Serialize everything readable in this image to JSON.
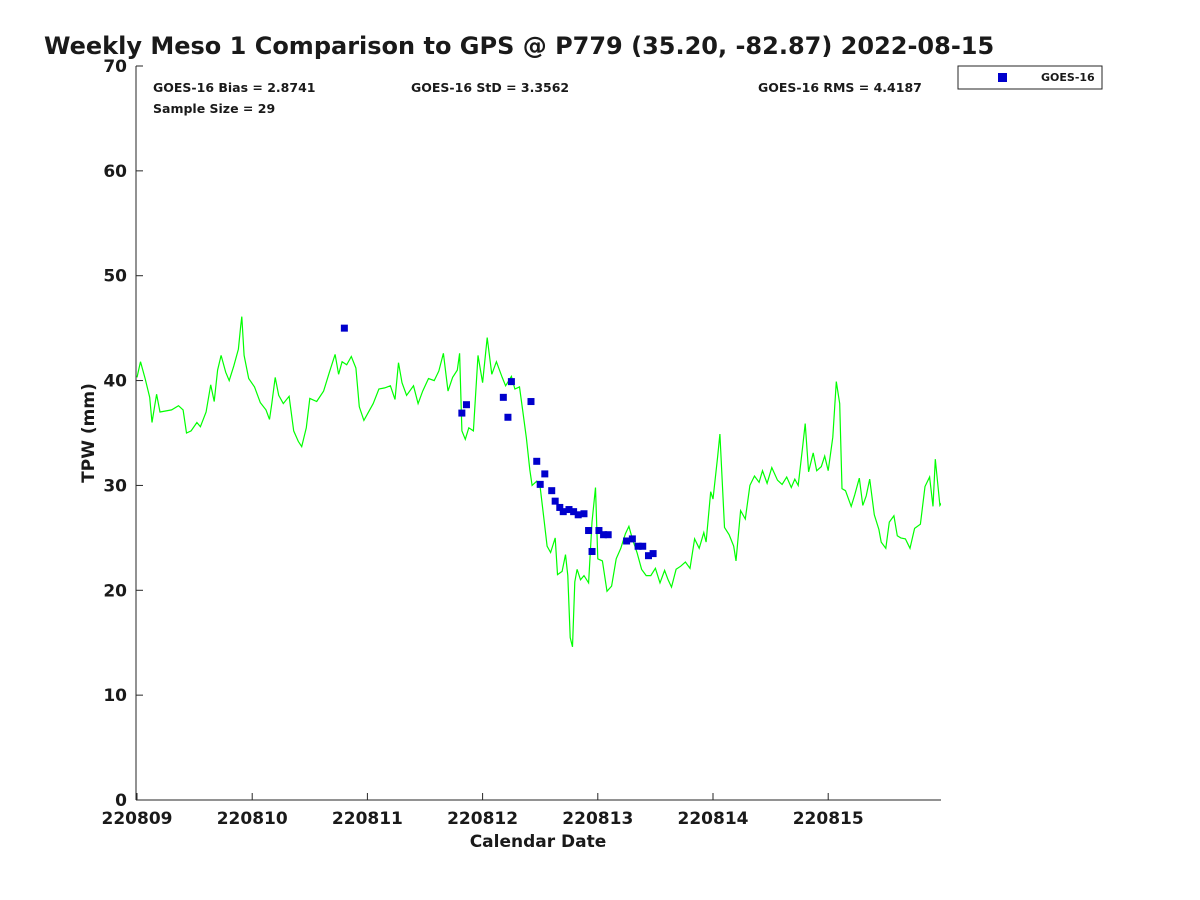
{
  "chart_data": {
    "type": "scatter",
    "title": "Weekly Meso 1 Comparison to GPS @ P779 (35.20, -82.87) 2022-08-15",
    "xlabel": "Calendar Date",
    "ylabel": "TPW (mm)",
    "xlim_days": [
      0,
      6.97
    ],
    "ylim": [
      0,
      70
    ],
    "y_ticks": [
      0,
      10,
      20,
      30,
      40,
      50,
      60,
      70
    ],
    "x_ticks": [
      {
        "day": 0,
        "label": "220809"
      },
      {
        "day": 1,
        "label": "220810"
      },
      {
        "day": 2,
        "label": "220811"
      },
      {
        "day": 3,
        "label": "220812"
      },
      {
        "day": 4,
        "label": "220813"
      },
      {
        "day": 5,
        "label": "220814"
      },
      {
        "day": 6,
        "label": "220815"
      }
    ],
    "stats": {
      "bias": "GOES-16 Bias = 2.8741",
      "std": "GOES-16 StD = 3.3562",
      "rms": "GOES-16 RMS = 4.4187",
      "sample": "Sample Size = 29"
    },
    "legend": {
      "label": "GOES-16",
      "position": "outside-top-right"
    },
    "colors": {
      "goes": "#0000cc",
      "gps": "#00ff00"
    },
    "series": [
      {
        "name": "GOES-16",
        "marker": "square",
        "points": [
          [
            1.8,
            45.0
          ],
          [
            2.82,
            36.9
          ],
          [
            2.86,
            37.7
          ],
          [
            3.18,
            38.4
          ],
          [
            3.22,
            36.5
          ],
          [
            3.25,
            39.9
          ],
          [
            3.42,
            38.0
          ],
          [
            3.47,
            32.3
          ],
          [
            3.5,
            30.1
          ],
          [
            3.54,
            31.1
          ],
          [
            3.6,
            29.5
          ],
          [
            3.63,
            28.5
          ],
          [
            3.67,
            27.9
          ],
          [
            3.7,
            27.5
          ],
          [
            3.75,
            27.7
          ],
          [
            3.79,
            27.5
          ],
          [
            3.83,
            27.2
          ],
          [
            3.88,
            27.3
          ],
          [
            3.92,
            25.7
          ],
          [
            3.95,
            23.7
          ],
          [
            4.01,
            25.7
          ],
          [
            4.05,
            25.3
          ],
          [
            4.09,
            25.3
          ],
          [
            4.25,
            24.7
          ],
          [
            4.3,
            24.9
          ],
          [
            4.35,
            24.2
          ],
          [
            4.39,
            24.2
          ],
          [
            4.44,
            23.3
          ],
          [
            4.48,
            23.5
          ]
        ]
      },
      {
        "marker": "line",
        "points": [
          [
            0.0,
            40.3
          ],
          [
            0.03,
            41.8
          ],
          [
            0.07,
            40.2
          ],
          [
            0.11,
            38.4
          ],
          [
            0.13,
            36.0
          ],
          [
            0.17,
            38.7
          ],
          [
            0.2,
            37.0
          ],
          [
            0.3,
            37.2
          ],
          [
            0.36,
            37.6
          ],
          [
            0.4,
            37.2
          ],
          [
            0.43,
            35.0
          ],
          [
            0.47,
            35.2
          ],
          [
            0.52,
            36.0
          ],
          [
            0.55,
            35.6
          ],
          [
            0.6,
            37.0
          ],
          [
            0.64,
            39.6
          ],
          [
            0.67,
            38.0
          ],
          [
            0.7,
            41.0
          ],
          [
            0.73,
            42.4
          ],
          [
            0.77,
            40.8
          ],
          [
            0.8,
            40.0
          ],
          [
            0.84,
            41.4
          ],
          [
            0.88,
            43.0
          ],
          [
            0.9,
            45.2
          ],
          [
            0.91,
            46.1
          ],
          [
            0.93,
            42.4
          ],
          [
            0.97,
            40.2
          ],
          [
            1.02,
            39.4
          ],
          [
            1.07,
            37.9
          ],
          [
            1.12,
            37.2
          ],
          [
            1.15,
            36.3
          ],
          [
            1.17,
            37.8
          ],
          [
            1.2,
            40.3
          ],
          [
            1.23,
            38.6
          ],
          [
            1.27,
            37.8
          ],
          [
            1.32,
            38.5
          ],
          [
            1.36,
            35.2
          ],
          [
            1.4,
            34.2
          ],
          [
            1.43,
            33.7
          ],
          [
            1.47,
            35.5
          ],
          [
            1.5,
            38.3
          ],
          [
            1.56,
            38.0
          ],
          [
            1.62,
            39.0
          ],
          [
            1.67,
            40.8
          ],
          [
            1.72,
            42.5
          ],
          [
            1.75,
            40.6
          ],
          [
            1.78,
            41.8
          ],
          [
            1.82,
            41.5
          ],
          [
            1.86,
            42.3
          ],
          [
            1.9,
            41.2
          ],
          [
            1.93,
            37.5
          ],
          [
            1.97,
            36.2
          ],
          [
            2.0,
            36.8
          ],
          [
            2.05,
            37.8
          ],
          [
            2.1,
            39.2
          ],
          [
            2.15,
            39.3
          ],
          [
            2.2,
            39.5
          ],
          [
            2.24,
            38.2
          ],
          [
            2.27,
            41.7
          ],
          [
            2.3,
            39.8
          ],
          [
            2.34,
            38.6
          ],
          [
            2.4,
            39.5
          ],
          [
            2.44,
            37.8
          ],
          [
            2.48,
            39.0
          ],
          [
            2.53,
            40.2
          ],
          [
            2.58,
            40.0
          ],
          [
            2.62,
            40.9
          ],
          [
            2.66,
            42.6
          ],
          [
            2.7,
            39.0
          ],
          [
            2.74,
            40.3
          ],
          [
            2.78,
            41.0
          ],
          [
            2.8,
            42.6
          ],
          [
            2.82,
            35.2
          ],
          [
            2.85,
            34.4
          ],
          [
            2.88,
            35.5
          ],
          [
            2.92,
            35.2
          ],
          [
            2.96,
            42.4
          ],
          [
            3.0,
            39.8
          ],
          [
            3.04,
            44.1
          ],
          [
            3.08,
            40.6
          ],
          [
            3.12,
            41.8
          ],
          [
            3.17,
            40.3
          ],
          [
            3.2,
            39.5
          ],
          [
            3.25,
            40.4
          ],
          [
            3.28,
            39.2
          ],
          [
            3.32,
            39.4
          ],
          [
            3.35,
            37.0
          ],
          [
            3.38,
            34.5
          ],
          [
            3.41,
            31.5
          ],
          [
            3.43,
            30.0
          ],
          [
            3.47,
            30.4
          ],
          [
            3.5,
            29.8
          ],
          [
            3.53,
            27.0
          ],
          [
            3.56,
            24.2
          ],
          [
            3.59,
            23.6
          ],
          [
            3.63,
            25.0
          ],
          [
            3.65,
            21.5
          ],
          [
            3.69,
            21.8
          ],
          [
            3.72,
            23.4
          ],
          [
            3.74,
            21.4
          ],
          [
            3.76,
            15.5
          ],
          [
            3.78,
            14.6
          ],
          [
            3.8,
            20.8
          ],
          [
            3.82,
            22.0
          ],
          [
            3.85,
            21.0
          ],
          [
            3.88,
            21.4
          ],
          [
            3.92,
            20.7
          ],
          [
            3.95,
            26.5
          ],
          [
            3.98,
            29.8
          ],
          [
            4.0,
            23.0
          ],
          [
            4.04,
            22.8
          ],
          [
            4.08,
            19.9
          ],
          [
            4.12,
            20.4
          ],
          [
            4.16,
            23.0
          ],
          [
            4.2,
            24.0
          ],
          [
            4.24,
            25.4
          ],
          [
            4.27,
            26.1
          ],
          [
            4.3,
            24.9
          ],
          [
            4.34,
            23.6
          ],
          [
            4.38,
            22.0
          ],
          [
            4.42,
            21.4
          ],
          [
            4.46,
            21.4
          ],
          [
            4.5,
            22.1
          ],
          [
            4.54,
            20.7
          ],
          [
            4.58,
            21.9
          ],
          [
            4.61,
            21.0
          ],
          [
            4.64,
            20.3
          ],
          [
            4.68,
            22.0
          ],
          [
            4.72,
            22.3
          ],
          [
            4.76,
            22.7
          ],
          [
            4.8,
            22.1
          ],
          [
            4.84,
            24.9
          ],
          [
            4.88,
            24.0
          ],
          [
            4.92,
            25.5
          ],
          [
            4.94,
            24.6
          ],
          [
            4.98,
            29.4
          ],
          [
            5.0,
            28.7
          ],
          [
            5.04,
            32.7
          ],
          [
            5.06,
            34.9
          ],
          [
            5.1,
            26.0
          ],
          [
            5.14,
            25.3
          ],
          [
            5.18,
            24.2
          ],
          [
            5.2,
            22.8
          ],
          [
            5.24,
            27.6
          ],
          [
            5.28,
            26.8
          ],
          [
            5.32,
            30.0
          ],
          [
            5.36,
            30.9
          ],
          [
            5.4,
            30.3
          ],
          [
            5.43,
            31.4
          ],
          [
            5.47,
            30.2
          ],
          [
            5.51,
            31.7
          ],
          [
            5.56,
            30.5
          ],
          [
            5.6,
            30.1
          ],
          [
            5.64,
            30.8
          ],
          [
            5.68,
            29.8
          ],
          [
            5.71,
            30.6
          ],
          [
            5.74,
            30.0
          ],
          [
            5.78,
            33.9
          ],
          [
            5.8,
            35.9
          ],
          [
            5.83,
            31.3
          ],
          [
            5.87,
            33.1
          ],
          [
            5.9,
            31.4
          ],
          [
            5.94,
            31.8
          ],
          [
            5.97,
            32.8
          ],
          [
            6.0,
            31.4
          ],
          [
            6.04,
            34.6
          ],
          [
            6.07,
            39.9
          ],
          [
            6.1,
            37.8
          ],
          [
            6.12,
            29.7
          ],
          [
            6.15,
            29.5
          ],
          [
            6.2,
            28.0
          ],
          [
            6.23,
            29.1
          ],
          [
            6.27,
            30.7
          ],
          [
            6.3,
            28.1
          ],
          [
            6.33,
            29.0
          ],
          [
            6.36,
            30.6
          ],
          [
            6.4,
            27.2
          ],
          [
            6.44,
            25.8
          ],
          [
            6.46,
            24.6
          ],
          [
            6.5,
            24.0
          ],
          [
            6.53,
            26.5
          ],
          [
            6.57,
            27.1
          ],
          [
            6.6,
            25.2
          ],
          [
            6.63,
            25.0
          ],
          [
            6.67,
            24.9
          ],
          [
            6.71,
            24.0
          ],
          [
            6.75,
            25.9
          ],
          [
            6.8,
            26.3
          ],
          [
            6.84,
            29.9
          ],
          [
            6.88,
            30.8
          ],
          [
            6.91,
            28.0
          ],
          [
            6.93,
            32.5
          ],
          [
            6.97,
            28.1
          ],
          [
            7.0,
            28.6
          ],
          [
            7.05,
            30.1
          ]
        ]
      }
    ]
  }
}
